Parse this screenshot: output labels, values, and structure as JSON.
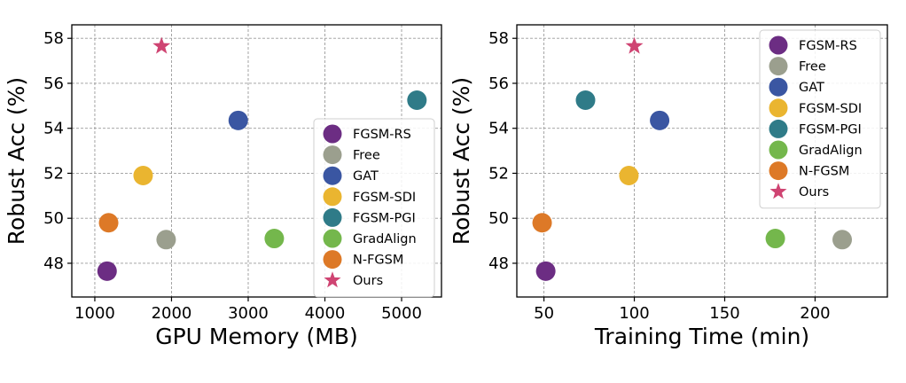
{
  "chart_data": [
    {
      "type": "scatter",
      "xlabel": "GPU Memory (MB)",
      "ylabel": "Robust Acc (%)",
      "xlim": [
        700,
        5520
      ],
      "ylim": [
        46.5,
        58.6
      ],
      "xticks": [
        "1000",
        "2000",
        "3000",
        "4000",
        "5000"
      ],
      "yticks": [
        "48",
        "50",
        "52",
        "54",
        "56",
        "58"
      ],
      "grid": true,
      "legend_position": "bottom-right",
      "series": [
        {
          "name": "FGSM-RS",
          "marker": "circle",
          "color": "#6c2d83",
          "x": 1160,
          "y": 47.65
        },
        {
          "name": "Free",
          "marker": "circle",
          "color": "#9b9f8e",
          "x": 1930,
          "y": 49.05
        },
        {
          "name": "GAT",
          "marker": "circle",
          "color": "#3a56a2",
          "x": 2870,
          "y": 54.35
        },
        {
          "name": "FGSM-SDI",
          "marker": "circle",
          "color": "#eab530",
          "x": 1630,
          "y": 51.9
        },
        {
          "name": "FGSM-PGI",
          "marker": "circle",
          "color": "#2f7b88",
          "x": 5200,
          "y": 55.25
        },
        {
          "name": "GradAlign",
          "marker": "circle",
          "color": "#74b74c",
          "x": 3340,
          "y": 49.1
        },
        {
          "name": "N-FGSM",
          "marker": "circle",
          "color": "#dd7927",
          "x": 1180,
          "y": 49.8
        },
        {
          "name": "Ours",
          "marker": "star",
          "color": "#cf4472",
          "x": 1870,
          "y": 57.65
        }
      ]
    },
    {
      "type": "scatter",
      "xlabel": "Training Time (min)",
      "ylabel": "Robust Acc (%)",
      "xlim": [
        35,
        240
      ],
      "ylim": [
        46.5,
        58.6
      ],
      "xticks": [
        "50",
        "100",
        "150",
        "200"
      ],
      "yticks": [
        "48",
        "50",
        "52",
        "54",
        "56",
        "58"
      ],
      "grid": true,
      "legend_position": "top-right",
      "series": [
        {
          "name": "FGSM-RS",
          "marker": "circle",
          "color": "#6c2d83",
          "x": 51,
          "y": 47.65
        },
        {
          "name": "Free",
          "marker": "circle",
          "color": "#9b9f8e",
          "x": 215,
          "y": 49.05
        },
        {
          "name": "GAT",
          "marker": "circle",
          "color": "#3a56a2",
          "x": 114,
          "y": 54.35
        },
        {
          "name": "FGSM-SDI",
          "marker": "circle",
          "color": "#eab530",
          "x": 97,
          "y": 51.9
        },
        {
          "name": "FGSM-PGI",
          "marker": "circle",
          "color": "#2f7b88",
          "x": 73,
          "y": 55.25
        },
        {
          "name": "GradAlign",
          "marker": "circle",
          "color": "#74b74c",
          "x": 178,
          "y": 49.1
        },
        {
          "name": "N-FGSM",
          "marker": "circle",
          "color": "#dd7927",
          "x": 49,
          "y": 49.8
        },
        {
          "name": "Ours",
          "marker": "star",
          "color": "#cf4472",
          "x": 100,
          "y": 57.65
        }
      ]
    }
  ]
}
